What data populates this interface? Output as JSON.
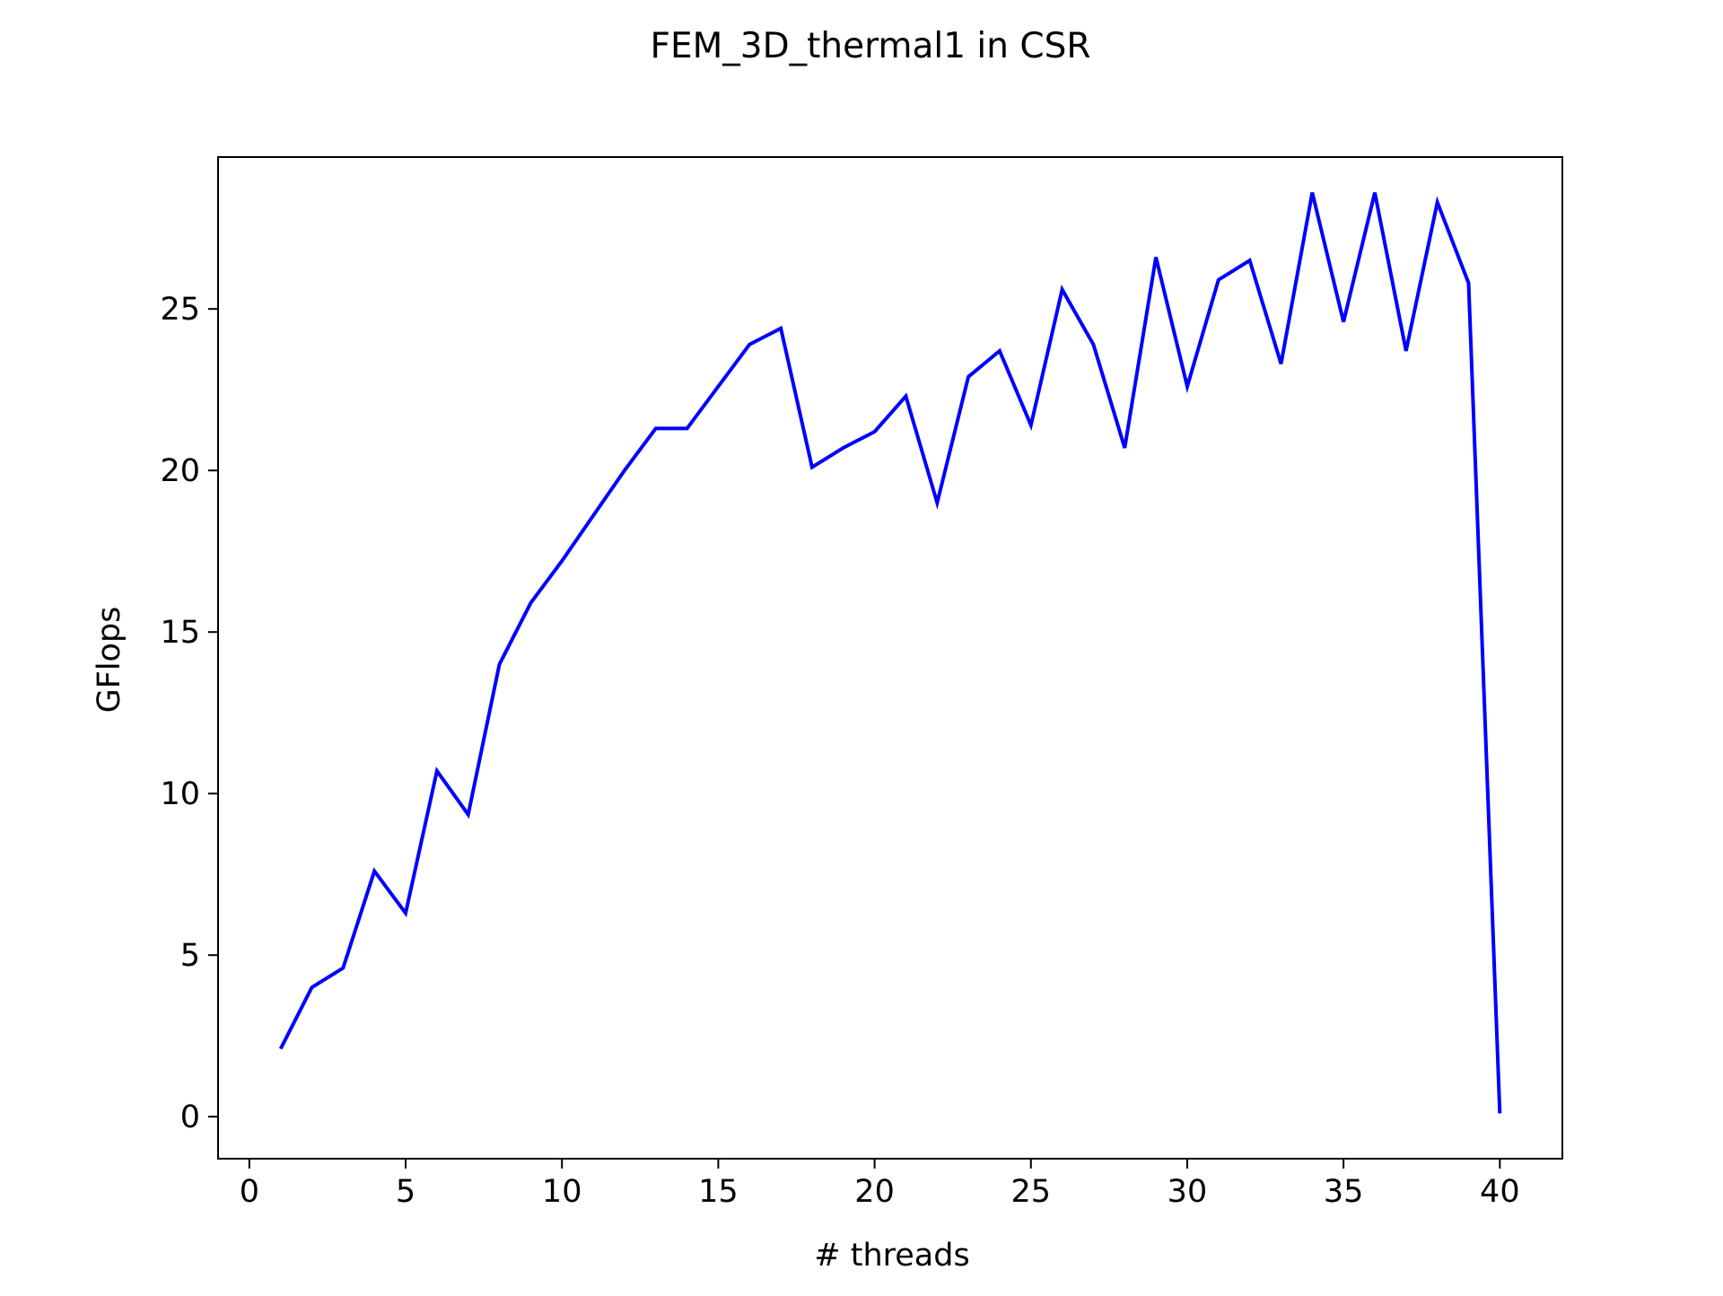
{
  "chart_data": {
    "type": "line",
    "title": "FEM_3D_thermal1 in CSR",
    "xlabel": "# threads",
    "ylabel": "GFlops",
    "xlim": [
      -1,
      42
    ],
    "ylim": [
      -1.3,
      29.7
    ],
    "xticks": [
      0,
      5,
      10,
      15,
      20,
      25,
      30,
      35,
      40
    ],
    "xtick_labels": [
      "0",
      "5",
      "10",
      "15",
      "20",
      "25",
      "30",
      "35",
      "40"
    ],
    "yticks": [
      0,
      5,
      10,
      15,
      20,
      25
    ],
    "ytick_labels": [
      "0",
      "5",
      "10",
      "15",
      "20",
      "25"
    ],
    "grid": false,
    "line_color": "#0000ff",
    "series": [
      {
        "x": [
          1,
          2,
          3,
          4,
          5,
          6,
          7,
          8,
          9,
          10,
          11,
          12,
          13,
          14,
          15,
          16,
          17,
          18,
          19,
          20,
          21,
          22,
          23,
          24,
          25,
          26,
          27,
          28,
          29,
          30,
          31,
          32,
          33,
          34,
          35,
          36,
          37,
          38,
          39,
          40
        ],
        "values": [
          2.1,
          4.0,
          4.6,
          7.6,
          6.3,
          10.7,
          9.35,
          14.0,
          15.9,
          17.2,
          18.6,
          20.0,
          21.3,
          21.3,
          22.6,
          23.9,
          24.4,
          20.1,
          20.7,
          21.2,
          22.3,
          19.0,
          22.9,
          23.7,
          21.4,
          25.6,
          23.9,
          20.7,
          26.6,
          22.6,
          25.9,
          26.5,
          23.3,
          28.6,
          24.6,
          28.6,
          23.7,
          28.3,
          25.8,
          0.1
        ]
      }
    ]
  }
}
